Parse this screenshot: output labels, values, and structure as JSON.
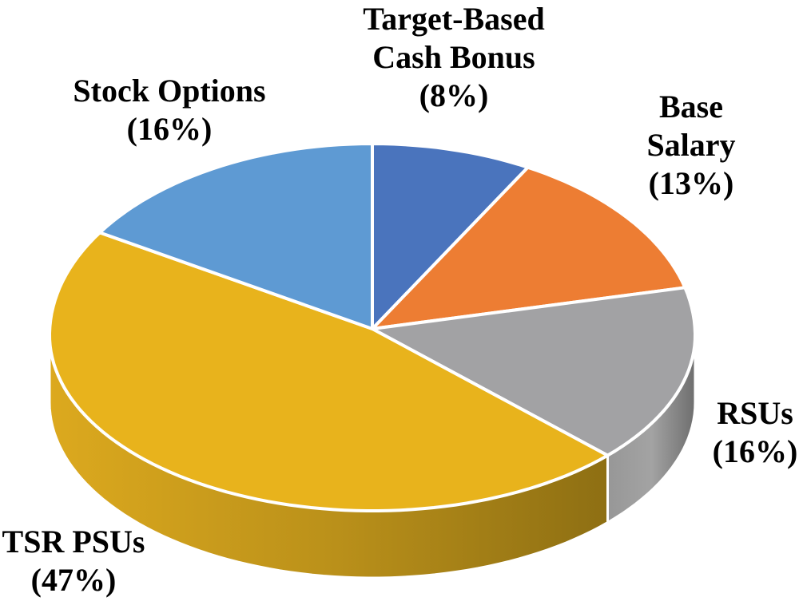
{
  "chart_data": {
    "type": "pie",
    "style": "3d",
    "title": "",
    "legend_position": "none",
    "start_angle_deg": 0,
    "clockwise": true,
    "units": "percent",
    "slices": [
      {
        "name": "Target-Based Cash Bonus",
        "label_lines": [
          "Target-Based",
          "Cash Bonus",
          "(8%)"
        ],
        "pct": 8,
        "color": "#4A74BD",
        "side_colors": null
      },
      {
        "name": "Base Salary",
        "label_lines": [
          "Base",
          "Salary",
          "(13%)"
        ],
        "pct": 13,
        "color": "#ED7D33",
        "side_colors": null
      },
      {
        "name": "RSUs",
        "label_lines": [
          "RSUs",
          "(16%)"
        ],
        "pct": 16,
        "color": "#A2A2A4",
        "side_colors": [
          "#979797",
          "#A3A3A3",
          "#6E6E6E"
        ]
      },
      {
        "name": "TSR PSUs",
        "label_lines": [
          "TSR PSUs",
          "(47%)"
        ],
        "pct": 47,
        "color": "#E8B31C",
        "side_colors": [
          "#DCA91E",
          "#BB911A",
          "#8E6F13"
        ]
      },
      {
        "name": "Stock Options",
        "label_lines": [
          "Stock Options",
          "(16%)"
        ],
        "pct": 16,
        "color": "#5E9AD3",
        "side_colors": null
      }
    ],
    "label_color": "#000000",
    "slice_border_color": "#FFFFFF"
  }
}
